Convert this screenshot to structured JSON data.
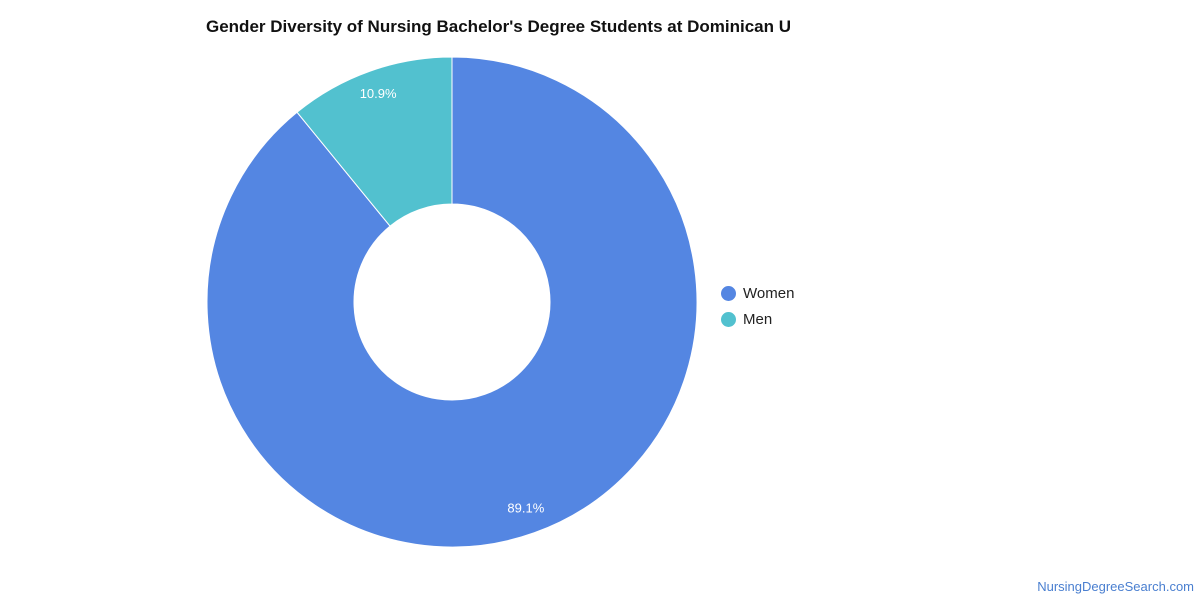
{
  "colors": {
    "women": "#5486e2",
    "men": "#52c1cf",
    "title": "#111111",
    "watermark": "#4a7fd0"
  },
  "chart_data": {
    "type": "pie",
    "variant": "donut",
    "title": "Gender Diversity of Nursing Bachelor's Degree Students at Dominican U",
    "categories": [
      "Women",
      "Men"
    ],
    "values": [
      89.1,
      10.9
    ],
    "data_labels": [
      "89.1%",
      "10.9%"
    ],
    "legend_position": "right",
    "legend": [
      {
        "label": "Women",
        "color": "#5486e2"
      },
      {
        "label": "Men",
        "color": "#52c1cf"
      }
    ]
  },
  "watermark": "NursingDegreeSearch.com"
}
